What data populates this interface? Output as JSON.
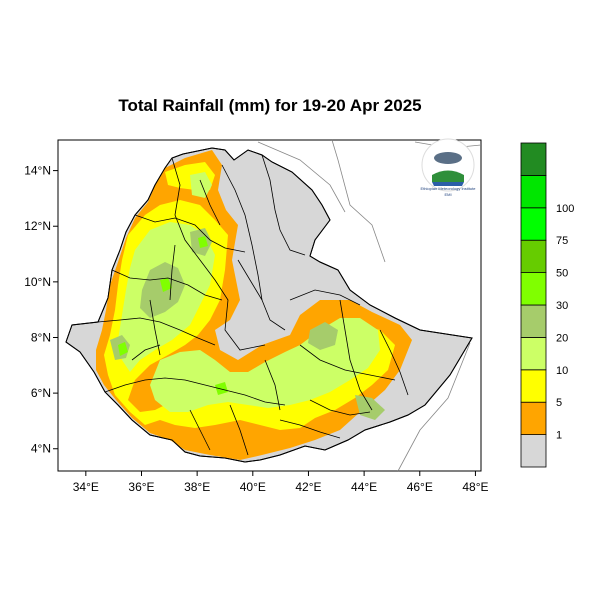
{
  "title": "Total Rainfall (mm) for 19-20 Apr 2025",
  "map": {
    "lon_ticks": [
      "34°E",
      "36°E",
      "38°E",
      "40°E",
      "42°E",
      "44°E",
      "46°E",
      "48°E"
    ],
    "lat_ticks": [
      "14°N",
      "12°N",
      "10°N",
      "8°N",
      "6°N",
      "4°N"
    ],
    "lon_range": [
      33,
      48.2
    ],
    "lat_range": [
      3.2,
      15.1
    ]
  },
  "legend": {
    "labels": [
      "1",
      "5",
      "10",
      "20",
      "30",
      "50",
      "75",
      "100"
    ],
    "colors": [
      "#d7d7d7",
      "#ffa500",
      "#ffff00",
      "#ccff66",
      "#a6cc6b",
      "#80ff00",
      "#66cc00",
      "#00ff00",
      "#00e600",
      "#228b22"
    ]
  },
  "logo": {
    "name": "Ethiopian Meteorology Institute",
    "short": "EMI"
  }
}
